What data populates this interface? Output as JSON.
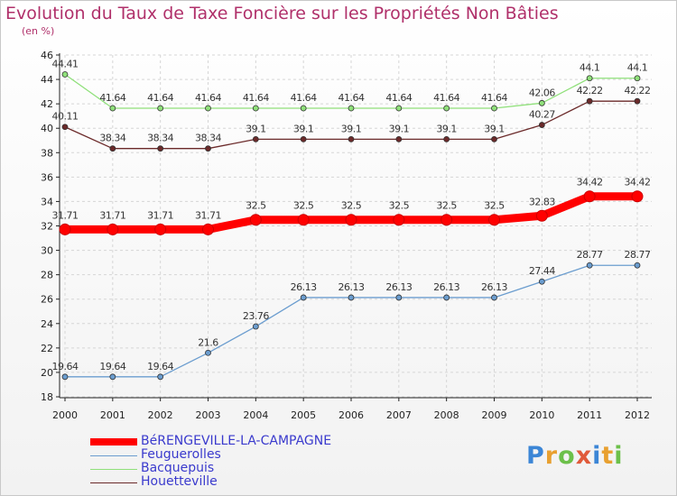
{
  "chart_data": {
    "type": "line",
    "title": "Evolution du Taux de Taxe Foncière sur les Propriétés Non Bâties",
    "subtitle": "(en %)",
    "ylim": [
      18,
      46
    ],
    "yticks": [
      18,
      20,
      22,
      24,
      26,
      28,
      30,
      32,
      34,
      36,
      38,
      40,
      42,
      44,
      46
    ],
    "x": [
      "2000",
      "2001",
      "2002",
      "2003",
      "2004",
      "2005",
      "2006",
      "2007",
      "2008",
      "2009",
      "2010",
      "2011",
      "2012"
    ],
    "grid": true,
    "series": [
      {
        "name": "BéRENGEVILLE-LA-CAMPAGNE",
        "color": "#ff0000",
        "values": [
          31.71,
          31.71,
          31.71,
          31.71,
          32.5,
          32.5,
          32.5,
          32.5,
          32.5,
          32.5,
          32.83,
          34.42,
          34.42
        ],
        "labels": [
          "31.71",
          "31.71",
          "31.71",
          "31.71",
          "32.5",
          "32.5",
          "32.5",
          "32.5",
          "32.5",
          "32.5",
          "32.83",
          "34.42",
          "34.42"
        ]
      },
      {
        "name": "Feuguerolles",
        "color": "#6b9dcf",
        "values": [
          19.64,
          19.64,
          19.64,
          21.6,
          23.76,
          26.13,
          26.13,
          26.13,
          26.13,
          26.13,
          27.44,
          28.77,
          28.77
        ],
        "labels": [
          "19.64",
          "19.64",
          "19.64",
          "21.6",
          "23.76",
          "26.13",
          "26.13",
          "26.13",
          "26.13",
          "26.13",
          "27.44",
          "28.77",
          "28.77"
        ]
      },
      {
        "name": "Bacquepuis",
        "color": "#8fe07a",
        "values": [
          44.41,
          41.64,
          41.64,
          41.64,
          41.64,
          41.64,
          41.64,
          41.64,
          41.64,
          41.64,
          42.06,
          44.1,
          44.1
        ],
        "labels": [
          "44.41",
          "41.64",
          "41.64",
          "41.64",
          "41.64",
          "41.64",
          "41.64",
          "41.64",
          "41.64",
          "41.64",
          "42.06",
          "44.1",
          "44.1"
        ]
      },
      {
        "name": "Houetteville",
        "color": "#6b2a2a",
        "values": [
          40.11,
          38.34,
          38.34,
          38.34,
          39.1,
          39.1,
          39.1,
          39.1,
          39.1,
          39.1,
          40.27,
          42.22,
          42.22
        ],
        "labels": [
          "40.11",
          "38.34",
          "38.34",
          "38.34",
          "39.1",
          "39.1",
          "39.1",
          "39.1",
          "39.1",
          "39.1",
          "40.27",
          "42.22",
          "42.22"
        ]
      }
    ]
  },
  "logo": {
    "text": "Proxiti",
    "colors": [
      "#3c86d6",
      "#e8a030",
      "#6cc04a",
      "#e05a3a",
      "#3c86d6",
      "#e8a030",
      "#6cc04a"
    ]
  }
}
